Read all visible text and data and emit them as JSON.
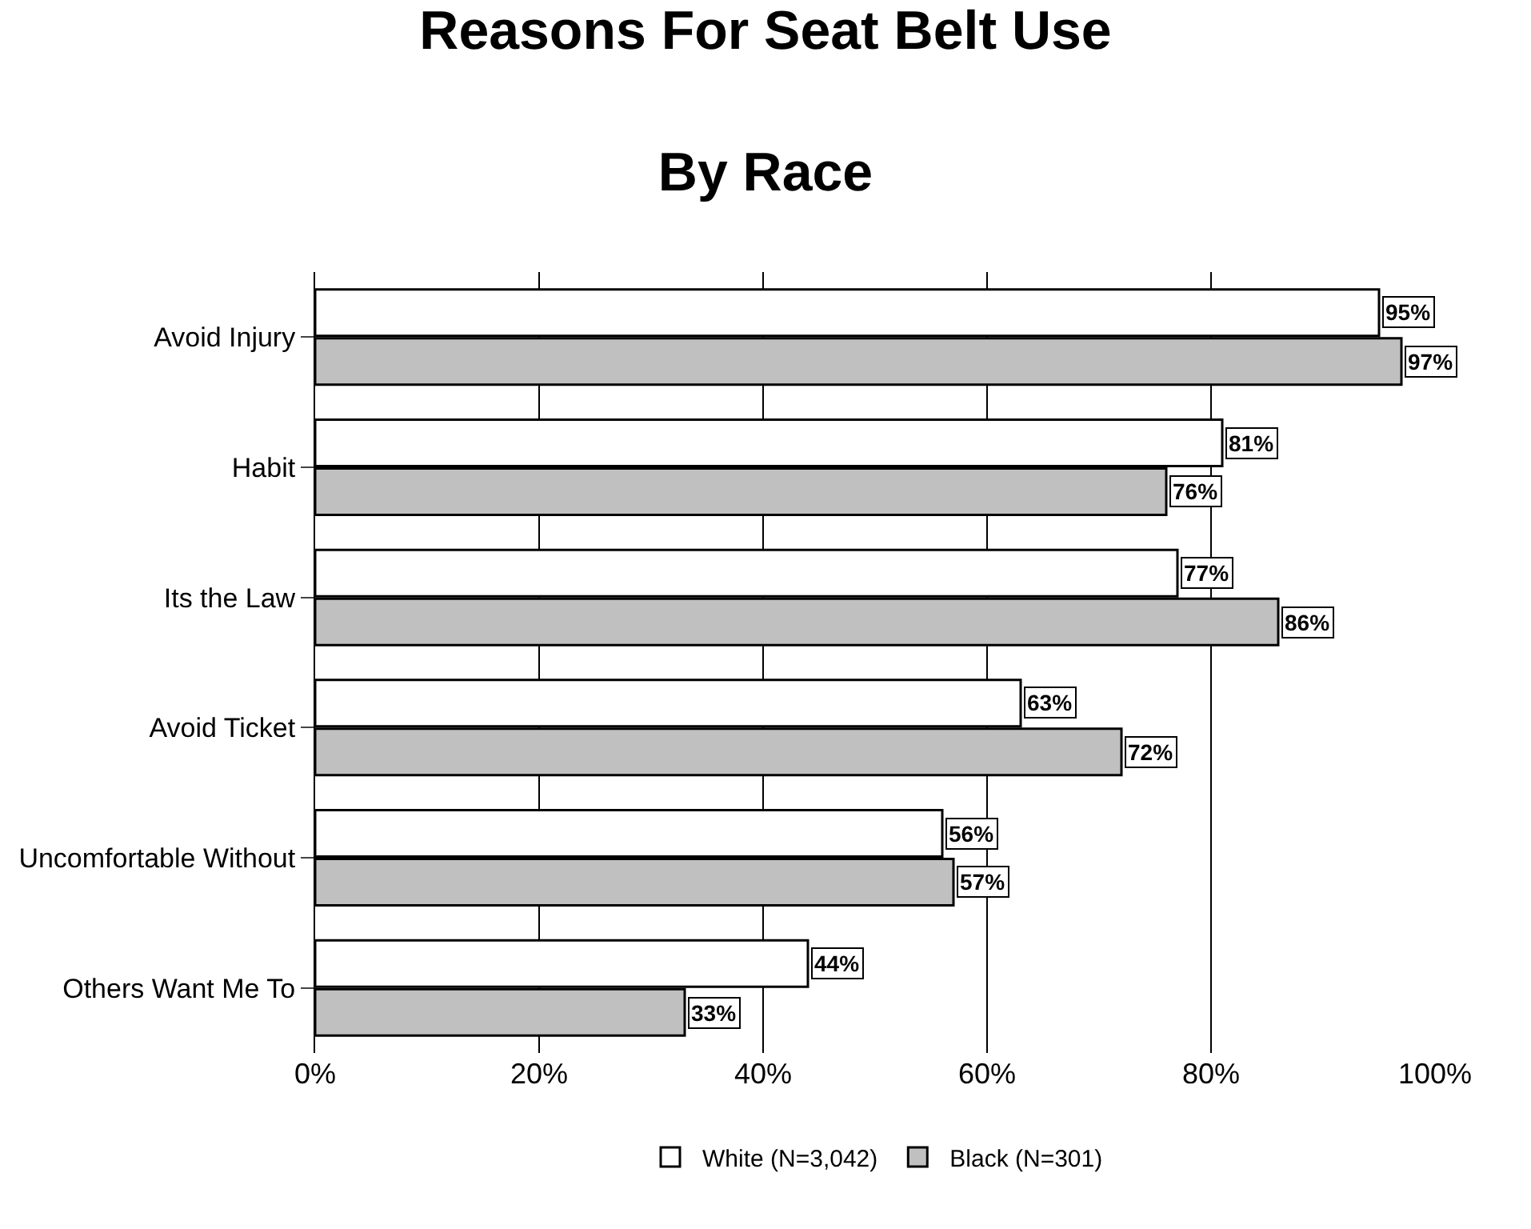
{
  "chart_data": {
    "type": "bar",
    "orientation": "horizontal",
    "title": "Reasons For Seat Belt Use",
    "subtitle": "By Race",
    "categories": [
      "Avoid Injury",
      "Habit",
      "Its the Law",
      "Avoid Ticket",
      "Uncomfortable Without",
      "Others Want Me To"
    ],
    "series": [
      {
        "name": "White (N=3,042)",
        "color": "#ffffff",
        "values": [
          95,
          81,
          77,
          63,
          56,
          44
        ],
        "value_labels": [
          "95%",
          "81%",
          "77%",
          "63%",
          "56%",
          "44%"
        ]
      },
      {
        "name": "Black (N=301)",
        "color": "#c0c0c0",
        "values": [
          97,
          76,
          86,
          72,
          57,
          33
        ],
        "value_labels": [
          "97%",
          "76%",
          "86%",
          "72%",
          "57%",
          "33%"
        ]
      }
    ],
    "xlim": [
      0,
      100
    ],
    "xticks": [
      {
        "value": 0,
        "label": "0%"
      },
      {
        "value": 20,
        "label": "20%"
      },
      {
        "value": 40,
        "label": "40%"
      },
      {
        "value": 60,
        "label": "60%"
      },
      {
        "value": 80,
        "label": "80%"
      },
      {
        "value": 100,
        "label": "100%"
      }
    ],
    "grid": "x",
    "legend": "bottom"
  }
}
